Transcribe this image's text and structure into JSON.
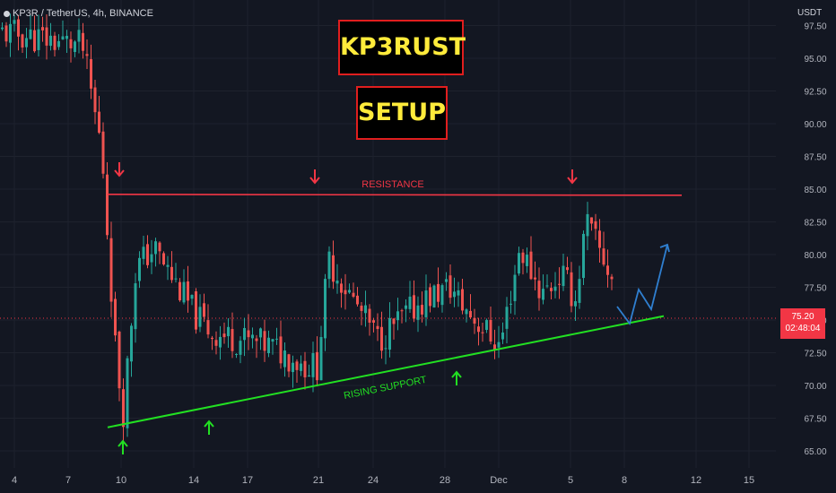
{
  "header": {
    "symbol": "KP3R / TetherUS, 4h, BINANCE"
  },
  "title_box_1": "KP3RUST",
  "title_box_2": "SETUP",
  "price_axis": {
    "unit": "USDT",
    "ticks": [
      "97.50",
      "95.00",
      "92.50",
      "90.00",
      "87.50",
      "85.00",
      "82.50",
      "80.00",
      "77.50",
      "75.00",
      "72.50",
      "70.00",
      "67.50",
      "65.00"
    ]
  },
  "current_price": {
    "price": "75.20",
    "countdown": "02:48:04"
  },
  "colors": {
    "background": "#131722",
    "up": "#26a69a",
    "down": "#ef5350",
    "resistance": "#f23645",
    "support": "#22e022",
    "projection": "#2f7fd0"
  },
  "chart_data": {
    "type": "candlestick",
    "title": "KP3R / TetherUS, 4h, BINANCE",
    "ylabel": "USDT",
    "ylim": [
      64.0,
      98.5
    ],
    "x_ticks": [
      "4",
      "7",
      "10",
      "14",
      "17",
      "21",
      "24",
      "28",
      "Dec",
      "5",
      "8",
      "12",
      "15"
    ],
    "approx_trend_anchors": [
      {
        "date": "4",
        "close": 97.0
      },
      {
        "date": "7",
        "close": 96.0
      },
      {
        "date": "8",
        "close": 88.0
      },
      {
        "date": "9",
        "close": 72.0
      },
      {
        "date": "10",
        "close": 68.0
      },
      {
        "date": "10",
        "close": 79.0
      },
      {
        "date": "11",
        "close": 80.5
      },
      {
        "date": "12",
        "close": 75.5
      },
      {
        "date": "14",
        "close": 74.0
      },
      {
        "date": "15",
        "close": 73.0
      },
      {
        "date": "17",
        "close": 71.5
      },
      {
        "date": "19",
        "close": 71.5
      },
      {
        "date": "21",
        "close": 79.5
      },
      {
        "date": "22",
        "close": 73.5
      },
      {
        "date": "24",
        "close": 76.5
      },
      {
        "date": "26",
        "close": 77.5
      },
      {
        "date": "28",
        "close": 76.0
      },
      {
        "date": "29",
        "close": 73.0
      },
      {
        "date": "Dec",
        "close": 80.5
      },
      {
        "date": "2",
        "close": 77.0
      },
      {
        "date": "3",
        "close": 78.5
      },
      {
        "date": "4",
        "close": 76.5
      },
      {
        "date": "5",
        "close": 82.5
      },
      {
        "date": "6",
        "close": 78.0
      },
      {
        "date": "7",
        "close": 75.0
      }
    ],
    "annotations": [
      {
        "type": "horizontal_line",
        "label": "RESISTANCE",
        "y": 84.6
      },
      {
        "type": "trend_line",
        "label": "RISING SUPPORT",
        "from_y": 66.8,
        "to_y": 75.3
      },
      {
        "type": "arrows_down",
        "count": 3
      },
      {
        "type": "arrows_up",
        "count": 4
      },
      {
        "type": "projection_path",
        "points_y": [
          74.5,
          77.5,
          75.8,
          80.0
        ]
      }
    ],
    "resistance_label": "RESISTANCE",
    "support_label": "RISING SUPPORT"
  }
}
